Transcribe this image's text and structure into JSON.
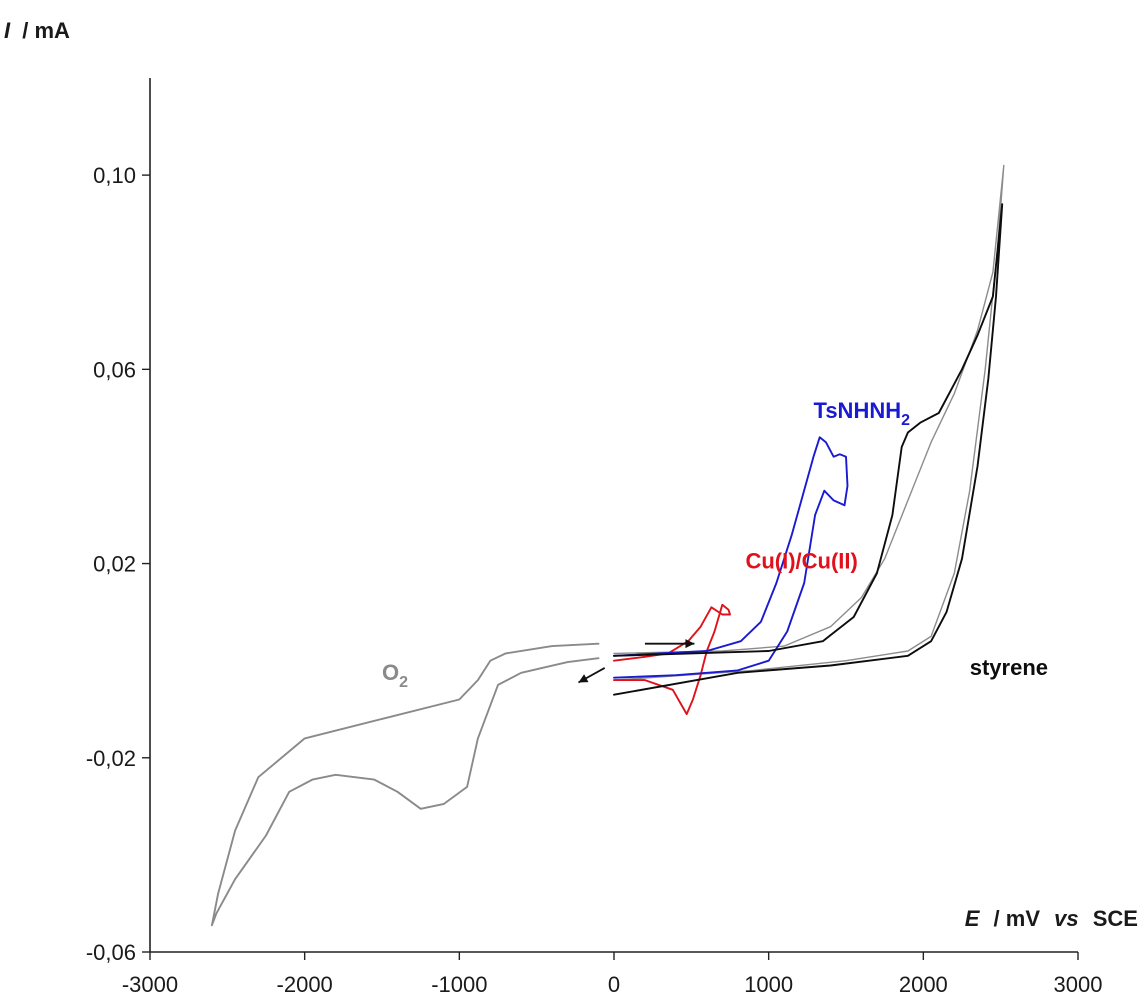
{
  "chart_data": {
    "type": "line",
    "ylabel": {
      "symbol": "I",
      "unit": "/ mA"
    },
    "xlabel": {
      "symbol": "E",
      "unit": "/ mV",
      "vs": "vs",
      "ref": "SCE"
    },
    "xlim": [
      -3000,
      3000
    ],
    "ylim": [
      -0.06,
      0.12
    ],
    "x_ticks": [
      -3000,
      -2000,
      -1000,
      0,
      1000,
      2000,
      3000
    ],
    "x_tick_labels": [
      "-3000",
      "-2000",
      "-1000",
      "0",
      "1000",
      "2000",
      "3000"
    ],
    "y_ticks": [
      -0.06,
      -0.02,
      0.02,
      0.06,
      0.1
    ],
    "y_tick_labels": [
      "-0,06",
      "-0,02",
      "0,02",
      "0,06",
      "0,10"
    ],
    "grid": false,
    "series": [
      {
        "key": "o2",
        "label": {
          "main": "O",
          "sub": "2"
        },
        "color": "#8a8a8a",
        "anchor": [
          -1500,
          -0.004
        ],
        "points": [
          [
            -100,
            0.0035
          ],
          [
            -400,
            0.003
          ],
          [
            -700,
            0.0015
          ],
          [
            -800,
            0
          ],
          [
            -880,
            -0.004
          ],
          [
            -1000,
            -0.008
          ],
          [
            -1500,
            -0.012
          ],
          [
            -2000,
            -0.016
          ],
          [
            -2300,
            -0.024
          ],
          [
            -2450,
            -0.035
          ],
          [
            -2560,
            -0.048
          ],
          [
            -2600,
            -0.0545
          ],
          [
            -2570,
            -0.052
          ],
          [
            -2450,
            -0.045
          ],
          [
            -2250,
            -0.036
          ],
          [
            -2100,
            -0.027
          ],
          [
            -1950,
            -0.0245
          ],
          [
            -1800,
            -0.0235
          ],
          [
            -1550,
            -0.0245
          ],
          [
            -1400,
            -0.027
          ],
          [
            -1250,
            -0.0305
          ],
          [
            -1100,
            -0.0295
          ],
          [
            -950,
            -0.026
          ],
          [
            -880,
            -0.016
          ],
          [
            -750,
            -0.005
          ],
          [
            -600,
            -0.0025
          ],
          [
            -300,
            -0.0003
          ],
          [
            -100,
            0.0005
          ]
        ]
      },
      {
        "key": "cu",
        "label": {
          "main": "Cu(I)/Cu(II)",
          "sub": ""
        },
        "color": "#e0111b",
        "anchor": [
          850,
          0.019
        ],
        "points": [
          [
            0,
            -0.004
          ],
          [
            200,
            -0.004
          ],
          [
            380,
            -0.006
          ],
          [
            470,
            -0.011
          ],
          [
            510,
            -0.008
          ],
          [
            560,
            -0.003
          ],
          [
            600,
            0.002
          ],
          [
            650,
            0.006
          ],
          [
            700,
            0.0115
          ],
          [
            740,
            0.0105
          ],
          [
            750,
            0.0095
          ],
          [
            700,
            0.0095
          ],
          [
            630,
            0.011
          ],
          [
            560,
            0.007
          ],
          [
            480,
            0.004
          ],
          [
            350,
            0.0015
          ],
          [
            200,
            0.0008
          ],
          [
            0,
            0
          ]
        ]
      },
      {
        "key": "tsnhnh2",
        "label": {
          "main": "TsNHNH",
          "sub": "2"
        },
        "color": "#1a1ad0",
        "anchor": [
          1290,
          0.05
        ],
        "points": [
          [
            0,
            -0.0035
          ],
          [
            400,
            -0.003
          ],
          [
            800,
            -0.002
          ],
          [
            1000,
            0
          ],
          [
            1120,
            0.006
          ],
          [
            1230,
            0.016
          ],
          [
            1300,
            0.03
          ],
          [
            1360,
            0.035
          ],
          [
            1420,
            0.033
          ],
          [
            1490,
            0.032
          ],
          [
            1510,
            0.036
          ],
          [
            1500,
            0.042
          ],
          [
            1460,
            0.0425
          ],
          [
            1420,
            0.042
          ],
          [
            1370,
            0.045
          ],
          [
            1330,
            0.046
          ],
          [
            1290,
            0.042
          ],
          [
            1220,
            0.034
          ],
          [
            1150,
            0.026
          ],
          [
            1050,
            0.016
          ],
          [
            950,
            0.008
          ],
          [
            820,
            0.004
          ],
          [
            600,
            0.002
          ],
          [
            0,
            0.001
          ]
        ]
      },
      {
        "key": "styrene",
        "label": {
          "main": "styrene",
          "sub": ""
        },
        "color": "#0d0d0d",
        "anchor": [
          2300,
          -0.003
        ],
        "points": [
          [
            0,
            -0.007
          ],
          [
            800,
            -0.0025
          ],
          [
            1400,
            -0.001
          ],
          [
            1900,
            0.001
          ],
          [
            2050,
            0.004
          ],
          [
            2150,
            0.01
          ],
          [
            2250,
            0.021
          ],
          [
            2350,
            0.04
          ],
          [
            2420,
            0.058
          ],
          [
            2470,
            0.075
          ],
          [
            2510,
            0.094
          ],
          [
            2450,
            0.075
          ],
          [
            2350,
            0.067
          ],
          [
            2250,
            0.06
          ],
          [
            2100,
            0.051
          ],
          [
            1980,
            0.049
          ],
          [
            1900,
            0.047
          ],
          [
            1860,
            0.044
          ],
          [
            1800,
            0.03
          ],
          [
            1700,
            0.018
          ],
          [
            1550,
            0.009
          ],
          [
            1350,
            0.004
          ],
          [
            1000,
            0.002
          ],
          [
            0,
            0.001
          ]
        ]
      },
      {
        "key": "background",
        "label": {
          "main": "",
          "sub": ""
        },
        "color": "#8c8c8c",
        "anchor": null,
        "points": [
          [
            0,
            -0.004
          ],
          [
            900,
            -0.002
          ],
          [
            1500,
            0
          ],
          [
            1900,
            0.002
          ],
          [
            2050,
            0.005
          ],
          [
            2200,
            0.018
          ],
          [
            2300,
            0.035
          ],
          [
            2400,
            0.06
          ],
          [
            2480,
            0.085
          ],
          [
            2520,
            0.102
          ],
          [
            2450,
            0.08
          ],
          [
            2350,
            0.068
          ],
          [
            2200,
            0.055
          ],
          [
            2050,
            0.045
          ],
          [
            1900,
            0.033
          ],
          [
            1750,
            0.021
          ],
          [
            1600,
            0.013
          ],
          [
            1400,
            0.007
          ],
          [
            1100,
            0.003
          ],
          [
            700,
            0.002
          ],
          [
            0,
            0.0015
          ]
        ]
      }
    ],
    "arrows": [
      {
        "from": [
          200,
          0.0035
        ],
        "to": [
          520,
          0.0035
        ],
        "color": "#111111"
      },
      {
        "from": [
          -60,
          -0.0015
        ],
        "to": [
          -230,
          -0.0045
        ],
        "color": "#111111"
      }
    ]
  }
}
